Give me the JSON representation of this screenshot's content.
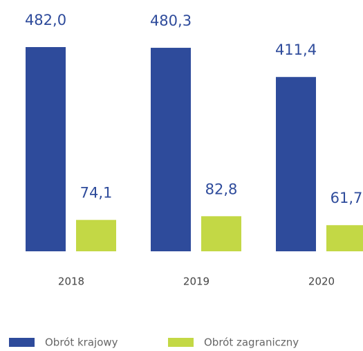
{
  "chart_data": {
    "type": "bar",
    "categories": [
      "2018",
      "2019",
      "2020"
    ],
    "series": [
      {
        "name": "Obrót krajowy",
        "color": "#2e4b9b",
        "values": [
          482.0,
          480.3,
          411.4
        ],
        "value_labels": [
          "482,0",
          "480,3",
          "411,4"
        ]
      },
      {
        "name": "Obrót zagraniczny",
        "color": "#c3d845",
        "values": [
          74.1,
          82.8,
          61.7
        ],
        "value_labels": [
          "74,1",
          "82,8",
          "61,7"
        ]
      }
    ],
    "legend": "bottom"
  }
}
